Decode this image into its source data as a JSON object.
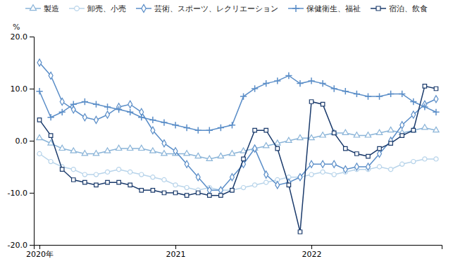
{
  "chart_data": {
    "type": "line",
    "y_label": "%",
    "categories": [
      "2020年",
      null,
      null,
      null,
      null,
      null,
      null,
      null,
      null,
      null,
      null,
      null,
      "2021",
      null,
      null,
      null,
      null,
      null,
      null,
      null,
      null,
      null,
      null,
      null,
      "2022",
      null,
      null,
      null,
      null,
      null,
      null,
      null,
      null,
      null,
      null,
      null
    ],
    "ylim": [
      -20.0,
      20.0
    ],
    "yticks": [
      {
        "value": -20.0,
        "label": "-20.0"
      },
      {
        "value": -10.0,
        "label": "-10.0"
      },
      {
        "value": 0.0,
        "label": "0.0"
      },
      {
        "value": 10.0,
        "label": "10.0"
      },
      {
        "value": 20.0,
        "label": "20.0"
      }
    ],
    "grid": false,
    "legend": "top",
    "series": [
      {
        "name": "製造",
        "color": "#8ab4d8",
        "marker": "triangle",
        "line_style": "solid",
        "values": [
          0.5,
          -0.5,
          -1.5,
          -2.0,
          -2.5,
          -2.5,
          -2.0,
          -1.5,
          -1.5,
          -1.5,
          -2.0,
          -2.5,
          -2.5,
          -2.5,
          -3.0,
          -3.5,
          -3.0,
          -2.5,
          -2.0,
          -1.5,
          -1.0,
          -0.5,
          0.0,
          0.5,
          0.5,
          1.0,
          1.5,
          1.5,
          1.0,
          1.0,
          1.5,
          2.0,
          1.5,
          2.0,
          2.5,
          2.0
        ]
      },
      {
        "name": "卸売、小売",
        "color": "#b8d4ea",
        "marker": "circle",
        "line_style": "solid",
        "values": [
          -2.5,
          -4.0,
          -5.0,
          -5.5,
          -6.5,
          -6.5,
          -6.0,
          -5.5,
          -6.0,
          -6.5,
          -7.0,
          -7.5,
          -8.5,
          -9.0,
          -9.5,
          -9.0,
          -9.5,
          -9.5,
          -9.0,
          -8.5,
          -8.0,
          -7.5,
          -7.0,
          -7.0,
          -6.5,
          -6.0,
          -6.5,
          -6.0,
          -5.5,
          -5.5,
          -5.0,
          -5.5,
          -4.5,
          -4.0,
          -3.5,
          -3.5
        ]
      },
      {
        "name": "芸術、スポーツ、レクリエーション",
        "color": "#5b8ec8",
        "marker": "diamond",
        "line_style": "solid",
        "values": [
          15.0,
          12.5,
          7.5,
          6.0,
          4.5,
          4.0,
          5.0,
          6.5,
          7.0,
          5.5,
          2.0,
          -0.5,
          -2.0,
          -4.5,
          -7.0,
          -9.5,
          -9.5,
          -7.0,
          -4.5,
          -1.5,
          -6.5,
          -8.5,
          -8.0,
          -7.0,
          -4.5,
          -4.5,
          -4.5,
          -5.5,
          -5.0,
          -5.0,
          -2.5,
          0.0,
          3.0,
          5.0,
          7.0,
          8.0
        ]
      },
      {
        "name": "保健衛生、福祉",
        "color": "#5b8ec8",
        "marker": "plus",
        "line_style": "solid",
        "values": [
          9.5,
          4.5,
          5.5,
          7.0,
          7.5,
          7.0,
          6.5,
          6.0,
          5.5,
          4.5,
          4.0,
          3.5,
          3.0,
          2.5,
          2.0,
          2.0,
          2.5,
          3.0,
          8.5,
          10.0,
          11.0,
          11.5,
          12.5,
          11.0,
          11.5,
          11.0,
          10.0,
          9.5,
          9.0,
          8.5,
          8.5,
          9.0,
          9.0,
          7.5,
          6.5,
          5.5
        ]
      },
      {
        "name": "宿泊、飲食",
        "color": "#1a3a6b",
        "marker": "square",
        "line_style": "solid",
        "values": [
          4.0,
          1.0,
          -5.5,
          -7.5,
          -8.0,
          -8.5,
          -8.0,
          -8.0,
          -8.5,
          -9.5,
          -9.5,
          -10.0,
          -10.0,
          -10.5,
          -10.0,
          -10.5,
          -10.5,
          -9.5,
          -3.5,
          2.0,
          2.0,
          -1.5,
          -8.5,
          -17.5,
          7.5,
          7.0,
          1.5,
          -1.5,
          -2.5,
          -3.0,
          -1.5,
          -0.5,
          1.0,
          2.0,
          10.5,
          10.0
        ]
      }
    ]
  }
}
